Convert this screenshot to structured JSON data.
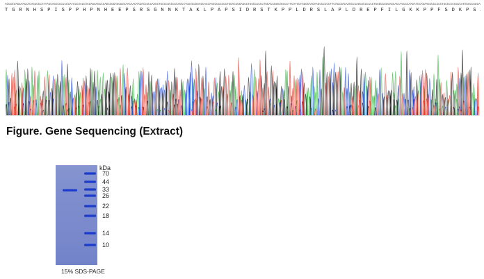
{
  "sequencing": {
    "nucleotides": "ACCGGCAGGAACCACAGCCCCATTAGCAGCCCCCCCCATCCCAACCACGAGGAGCCCAGCCGGAGCGGCAACAACAAGACCGCCAAGCTGCCCGCCCCCAGCATCGACCGGAGCACCAAGCCCCCCCTGGACCGGAGCCTGGCCCCCCTGGACCGGGAGCCCTTCATCCTGGGCAAGAAGCCCCCCTTCAGCGACAAGCCCAGCGCCCCCCTGGGCCGGGAGCACCTGCCCAAGATCCAGAAGCCCCCCCTGCCCCCCGCCATGGACCGGCACGAGCGGAACGAGCGGCTGGGCCCCGTGACCACCCGGAAGCCC",
    "amino_acids": "T G R N H S P I S P P H P N H E E P S R S G N N K T A K L P A P S I D R S T K P P L D R S L A P L D R E P F I L G K K P P F S D K P S A P L G R E H L P K I Q K P P L P P A M D R H E R N E R L G P V T T R K P"
  },
  "caption": "Figure. Gene Sequencing (Extract)",
  "gel": {
    "label": "15% SDS-PAGE",
    "unit": "kDa",
    "markers": [
      "70",
      "44",
      "33",
      "26",
      "22",
      "18",
      "14",
      "10"
    ],
    "lane_color": "#7c8ccd",
    "band_color": "#1c3ccc"
  },
  "trace_colors": {
    "A": "#2fae3a",
    "C": "#1f47d6",
    "G": "#1a1a1a",
    "T": "#e03a2c"
  }
}
